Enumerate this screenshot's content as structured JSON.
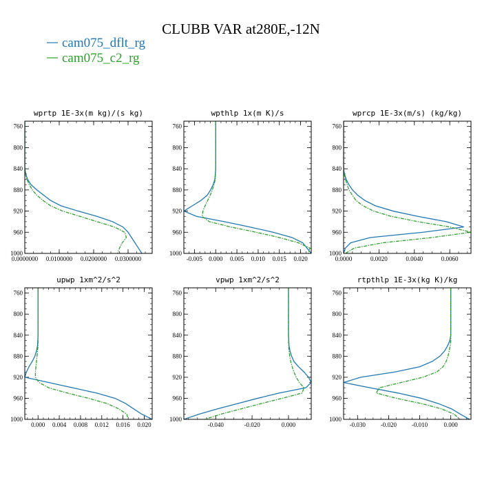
{
  "figure_title": "CLUBB VAR at280E,-12N",
  "legend": [
    {
      "label": "cam075_dflt_rg",
      "color": "#1f77b4"
    },
    {
      "label": "cam075_c2_rg",
      "color": "#2ca02c"
    }
  ],
  "chart_data": [
    {
      "type": "line",
      "title": "wprtp  1E-3x(m kg)/(s kg)",
      "xlim": [
        0,
        0.037
      ],
      "ylim": [
        1000,
        750
      ],
      "xticks": [
        0,
        0.01,
        0.02,
        0.03
      ],
      "xticklabels": [
        "0.0000000",
        "0.0100000",
        "0.0200000",
        "0.0300000"
      ],
      "yticks": [
        760,
        800,
        840,
        880,
        920,
        960,
        1000
      ],
      "y": [
        750,
        800,
        840,
        850,
        860,
        870,
        880,
        890,
        900,
        910,
        920,
        930,
        940,
        950,
        960,
        970,
        980,
        990,
        1000
      ],
      "series": [
        {
          "name": "cam075_dflt_rg",
          "x": [
            0,
            0,
            0,
            0.0003,
            0.0008,
            0.0018,
            0.0035,
            0.0055,
            0.0075,
            0.0105,
            0.0155,
            0.021,
            0.0255,
            0.0285,
            0.03,
            0.031,
            0.032,
            0.033,
            0.034
          ]
        },
        {
          "name": "cam075_c2_rg",
          "x": [
            0,
            0,
            0,
            0.0002,
            0.0006,
            0.0013,
            0.0022,
            0.0035,
            0.0053,
            0.0075,
            0.011,
            0.016,
            0.021,
            0.026,
            0.029,
            0.0295,
            0.0283,
            0.0275,
            0.027
          ]
        }
      ]
    },
    {
      "type": "line",
      "title": "wpthlp  1x(m K)/s",
      "xlim": [
        -0.0075,
        0.0225
      ],
      "ylim": [
        1000,
        750
      ],
      "xticks": [
        -0.005,
        0,
        0.005,
        0.01,
        0.015,
        0.02
      ],
      "xticklabels": [
        "-0.005",
        "0.000",
        "0.005",
        "0.010",
        "0.015",
        "0.020"
      ],
      "yticks": [
        760,
        800,
        840,
        880,
        920,
        960,
        1000
      ],
      "y": [
        750,
        800,
        840,
        860,
        870,
        880,
        890,
        900,
        910,
        920,
        930,
        940,
        950,
        960,
        970,
        980,
        990,
        1000
      ],
      "series": [
        {
          "name": "cam075_dflt_rg",
          "x": [
            0,
            0,
            0,
            -0.0002,
            -0.0006,
            -0.0012,
            -0.002,
            -0.0035,
            -0.0055,
            -0.0075,
            -0.0045,
            0.002,
            0.008,
            0.0135,
            0.018,
            0.0205,
            0.0215,
            0.0225
          ]
        },
        {
          "name": "cam075_c2_rg",
          "x": [
            0,
            0,
            0,
            -0.0001,
            -0.0004,
            -0.0008,
            -0.0013,
            -0.0019,
            -0.0025,
            -0.003,
            -0.0032,
            -0.0015,
            0.0035,
            0.0095,
            0.015,
            0.0195,
            0.0222,
            0.0218
          ]
        }
      ]
    },
    {
      "type": "line",
      "title": "wprcp  1E-3x(m/s) (kg/kg)",
      "xlim": [
        0,
        0.0072
      ],
      "ylim": [
        1000,
        750
      ],
      "xticks": [
        0,
        0.002,
        0.004,
        0.006
      ],
      "xticklabels": [
        "0.0000",
        "0.0020",
        "0.0040",
        "0.0060"
      ],
      "yticks": [
        760,
        800,
        840,
        880,
        920,
        960,
        1000
      ],
      "y": [
        750,
        800,
        840,
        850,
        860,
        870,
        880,
        890,
        900,
        910,
        920,
        930,
        940,
        950,
        960,
        970,
        980,
        990,
        1000
      ],
      "series": [
        {
          "name": "cam075_dflt_rg",
          "x": [
            0,
            0,
            0,
            5e-05,
            0.00015,
            0.0003,
            0.0005,
            0.0008,
            0.0012,
            0.0018,
            0.0028,
            0.0042,
            0.0058,
            0.0068,
            0.0045,
            0.0015,
            0.0004,
            0.0001,
            0
          ]
        },
        {
          "name": "cam075_c2_rg",
          "x": [
            0,
            0,
            0,
            3e-05,
            0.0001,
            0.0002,
            0.0003,
            0.0005,
            0.0007,
            0.0011,
            0.0017,
            0.0027,
            0.0042,
            0.006,
            0.0072,
            0.005,
            0.0022,
            0.0006,
            0.0001
          ]
        }
      ]
    },
    {
      "type": "line",
      "title": "upwp  1xm^2/s^2",
      "xlim": [
        -0.0025,
        0.0215
      ],
      "ylim": [
        1000,
        750
      ],
      "xticks": [
        0,
        0.004,
        0.008,
        0.012,
        0.016,
        0.02
      ],
      "xticklabels": [
        "0.000",
        "0.004",
        "0.008",
        "0.012",
        "0.016",
        "0.020"
      ],
      "yticks": [
        760,
        800,
        840,
        880,
        920,
        960,
        1000
      ],
      "y": [
        750,
        800,
        840,
        860,
        870,
        880,
        890,
        900,
        910,
        920,
        930,
        940,
        950,
        960,
        970,
        980,
        990,
        1000
      ],
      "series": [
        {
          "name": "cam075_dflt_rg",
          "x": [
            0,
            0,
            0,
            -0.0001,
            -0.0003,
            -0.0006,
            -0.0011,
            -0.0017,
            -0.0022,
            -0.0025,
            0.002,
            0.0065,
            0.011,
            0.0145,
            0.0165,
            0.018,
            0.0195,
            0.0215
          ]
        },
        {
          "name": "cam075_c2_rg",
          "x": [
            0,
            0,
            0,
            0,
            -0.0001,
            -0.0002,
            -0.0003,
            -0.0004,
            -0.0005,
            -0.0005,
            0.0002,
            0.002,
            0.0055,
            0.0095,
            0.013,
            0.0152,
            0.0167,
            0.017
          ]
        }
      ]
    },
    {
      "type": "line",
      "title": "vpwp  1xm^2/s^2",
      "xlim": [
        -0.0575,
        0.0125
      ],
      "ylim": [
        1000,
        750
      ],
      "xticks": [
        -0.04,
        -0.02,
        0
      ],
      "xticklabels": [
        "-0.040",
        "-0.020",
        "0.000"
      ],
      "yticks": [
        760,
        800,
        840,
        880,
        920,
        960,
        1000
      ],
      "y": [
        750,
        800,
        840,
        860,
        870,
        880,
        890,
        900,
        910,
        920,
        930,
        940,
        950,
        960,
        970,
        980,
        990,
        1000
      ],
      "series": [
        {
          "name": "cam075_dflt_rg",
          "x": [
            0,
            0,
            0,
            0.0003,
            0.0008,
            0.0017,
            0.003,
            0.0055,
            0.0085,
            0.011,
            0.0125,
            0.0095,
            -0.005,
            -0.017,
            -0.028,
            -0.039,
            -0.049,
            -0.0575
          ]
        },
        {
          "name": "cam075_c2_rg",
          "x": [
            0,
            0,
            0,
            0.0001,
            0.0003,
            0.0007,
            0.0012,
            0.002,
            0.003,
            0.0042,
            0.006,
            0.0085,
            0.0075,
            -0.0035,
            -0.015,
            -0.026,
            -0.037,
            -0.046
          ]
        }
      ]
    },
    {
      "type": "line",
      "title": "rtpthlp  1E-3x(kg K)/kg",
      "xlim": [
        -0.0345,
        0.0065
      ],
      "ylim": [
        1000,
        750
      ],
      "xticks": [
        -0.03,
        -0.02,
        -0.01,
        0
      ],
      "xticklabels": [
        "-0.030",
        "-0.020",
        "-0.010",
        "0.000"
      ],
      "yticks": [
        760,
        800,
        840,
        880,
        920,
        960,
        1000
      ],
      "y": [
        750,
        800,
        840,
        850,
        860,
        870,
        880,
        890,
        900,
        910,
        920,
        930,
        940,
        950,
        960,
        970,
        980,
        990,
        1000
      ],
      "series": [
        {
          "name": "cam075_dflt_rg",
          "x": [
            0,
            0,
            0,
            -0.0003,
            -0.001,
            -0.002,
            -0.0035,
            -0.006,
            -0.01,
            -0.018,
            -0.029,
            -0.0345,
            -0.026,
            -0.017,
            -0.0095,
            -0.004,
            0.0002,
            0.003,
            0.006
          ]
        },
        {
          "name": "cam075_c2_rg",
          "x": [
            0,
            0,
            0,
            0,
            -0.0002,
            -0.0005,
            -0.0009,
            -0.0015,
            -0.0025,
            -0.0045,
            -0.009,
            -0.016,
            -0.023,
            -0.024,
            -0.0175,
            -0.0095,
            -0.003,
            0.001,
            0.003
          ]
        }
      ]
    }
  ]
}
